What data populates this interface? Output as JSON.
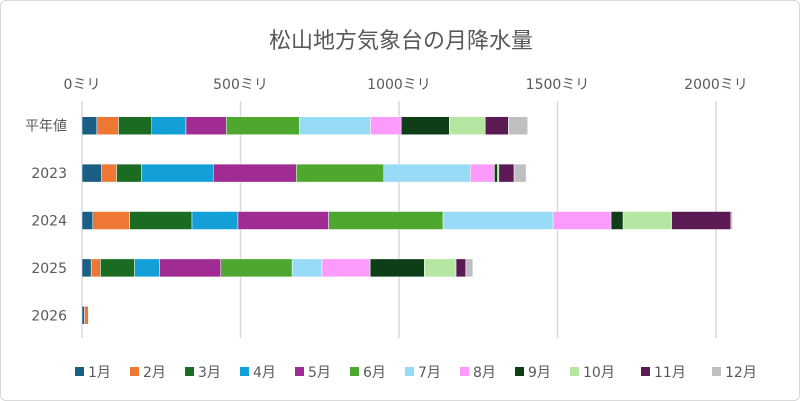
{
  "chart_data": {
    "type": "bar",
    "orientation": "horizontal",
    "stacked": true,
    "title": "松山地方気象台の月降水量",
    "categories": [
      "平年値",
      "2023",
      "2024",
      "2025",
      "2026"
    ],
    "x_ticks": [
      "0ミリ",
      "500ミリ",
      "1000ミリ",
      "1500ミリ",
      "2000ミリ"
    ],
    "xlim": [
      0,
      2000
    ],
    "x_axis_position": "top",
    "grid": true,
    "legend_position": "bottom",
    "series": [
      {
        "name": "1月",
        "color": "#1a5e84",
        "values": [
          47,
          62,
          34,
          29,
          8
        ]
      },
      {
        "name": "2月",
        "color": "#ed7733",
        "values": [
          68,
          47,
          116,
          29,
          12
        ]
      },
      {
        "name": "3月",
        "color": "#1b6b23",
        "values": [
          105,
          78,
          197,
          108,
          0
        ]
      },
      {
        "name": "4月",
        "color": "#12a0d7",
        "values": [
          108,
          227,
          145,
          79,
          0
        ]
      },
      {
        "name": "5月",
        "color": "#a02b93",
        "values": [
          127,
          262,
          286,
          193,
          0
        ]
      },
      {
        "name": "6月",
        "color": "#4ea72e",
        "values": [
          231,
          276,
          361,
          225,
          0
        ]
      },
      {
        "name": "7月",
        "color": "#97dbf7",
        "values": [
          224,
          273,
          347,
          94,
          0
        ]
      },
      {
        "name": "8月",
        "color": "#fd9bfc",
        "values": [
          97,
          76,
          183,
          152,
          0
        ]
      },
      {
        "name": "9月",
        "color": "#0e3e17",
        "values": [
          152,
          10,
          38,
          171,
          0
        ]
      },
      {
        "name": "10月",
        "color": "#b5e6a2",
        "values": [
          113,
          4,
          153,
          100,
          0
        ]
      },
      {
        "name": "11月",
        "color": "#5c1a55",
        "values": [
          73,
          48,
          187,
          31,
          0
        ]
      },
      {
        "name": "12月",
        "color": "#bfbfbf",
        "values": [
          61,
          38,
          5,
          22,
          0
        ]
      }
    ]
  }
}
